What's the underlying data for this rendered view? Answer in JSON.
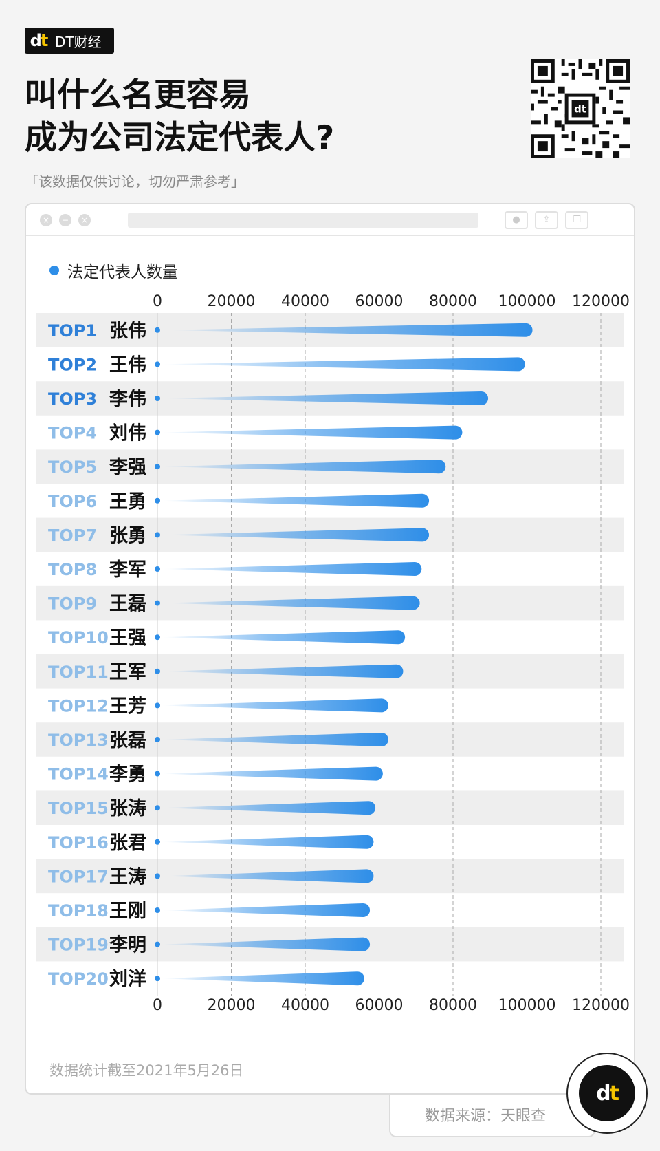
{
  "brand": {
    "mark": "dt",
    "name": "DT财经"
  },
  "title": "叫什么名更容易\n成为公司法定代表人?",
  "subtitle": "「该数据仅供讨论，切勿严肃参考」",
  "legend_label": "法定代表人数量",
  "footnote": "数据统计截至2021年5月26日",
  "source": "数据来源：天眼查",
  "colors": {
    "bar": "#2e8ee8",
    "rank_top": "#2f80d8",
    "rank_light": "#8fbde8",
    "row_stripe": "#eeeeee",
    "grid": "#aaaaaa"
  },
  "chart_data": {
    "type": "bar",
    "orientation": "horizontal",
    "title": "",
    "xlim": [
      0,
      120000
    ],
    "xticks": [
      "0",
      "20000",
      "40000",
      "60000",
      "80000",
      "100000",
      "120000"
    ],
    "ranks": [
      "TOP1",
      "TOP2",
      "TOP3",
      "TOP4",
      "TOP5",
      "TOP6",
      "TOP7",
      "TOP8",
      "TOP9",
      "TOP10",
      "TOP11",
      "TOP12",
      "TOP13",
      "TOP14",
      "TOP15",
      "TOP16",
      "TOP17",
      "TOP18",
      "TOP19",
      "TOP20"
    ],
    "categories": [
      "张伟",
      "王伟",
      "李伟",
      "刘伟",
      "李强",
      "王勇",
      "张勇",
      "李军",
      "王磊",
      "王强",
      "王军",
      "王芳",
      "张磊",
      "李勇",
      "张涛",
      "张君",
      "王涛",
      "王刚",
      "李明",
      "刘洋"
    ],
    "series": [
      {
        "name": "法定代表人数量",
        "values": [
          101500,
          99500,
          89500,
          82500,
          78000,
          73500,
          73500,
          71500,
          71000,
          67000,
          66500,
          62500,
          62500,
          61000,
          59000,
          58500,
          58500,
          57500,
          57500,
          56000
        ]
      }
    ],
    "grid": true,
    "gridlines": "dashed vertical",
    "legend_position": "top-left"
  }
}
